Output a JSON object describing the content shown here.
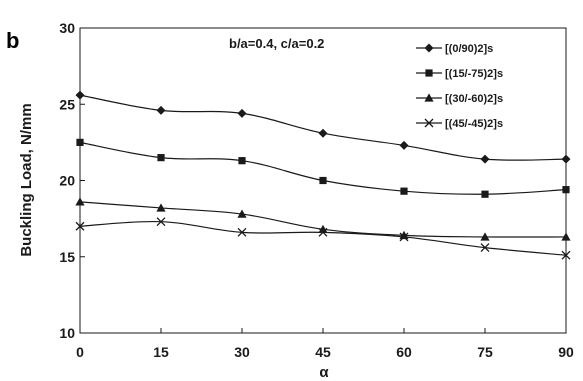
{
  "chart_data": {
    "type": "line",
    "panel_label": "b",
    "annotation": "b/a=0.4, c/a=0.2",
    "xlabel": "α",
    "ylabel": "Buckling Load, N/mm",
    "x": [
      0,
      15,
      30,
      45,
      60,
      75,
      90
    ],
    "x_ticks": [
      "0",
      "15",
      "30",
      "45",
      "60",
      "75",
      "90"
    ],
    "y_ticks": [
      "10",
      "15",
      "20",
      "25",
      "30"
    ],
    "xlim": [
      0,
      90
    ],
    "ylim": [
      10,
      30
    ],
    "grid": false,
    "legend_position": "top-right",
    "series": [
      {
        "name": "[(0/90)2]s",
        "marker": "diamond",
        "values": [
          25.6,
          24.6,
          24.4,
          23.1,
          22.3,
          21.4,
          21.4
        ]
      },
      {
        "name": "[(15/-75)2]s",
        "marker": "square",
        "values": [
          22.5,
          21.5,
          21.3,
          20.0,
          19.3,
          19.1,
          19.4
        ]
      },
      {
        "name": "[(30/-60)2]s",
        "marker": "triangle",
        "values": [
          18.6,
          18.2,
          17.8,
          16.8,
          16.4,
          16.3,
          16.3
        ]
      },
      {
        "name": "[(45/-45)2]s",
        "marker": "x",
        "values": [
          17.0,
          17.3,
          16.6,
          16.6,
          16.3,
          15.6,
          15.1
        ]
      }
    ],
    "colors": {
      "line": "#1a1a1a",
      "plot_bg": "#ffffff",
      "page_bg": "#ffffff"
    }
  }
}
